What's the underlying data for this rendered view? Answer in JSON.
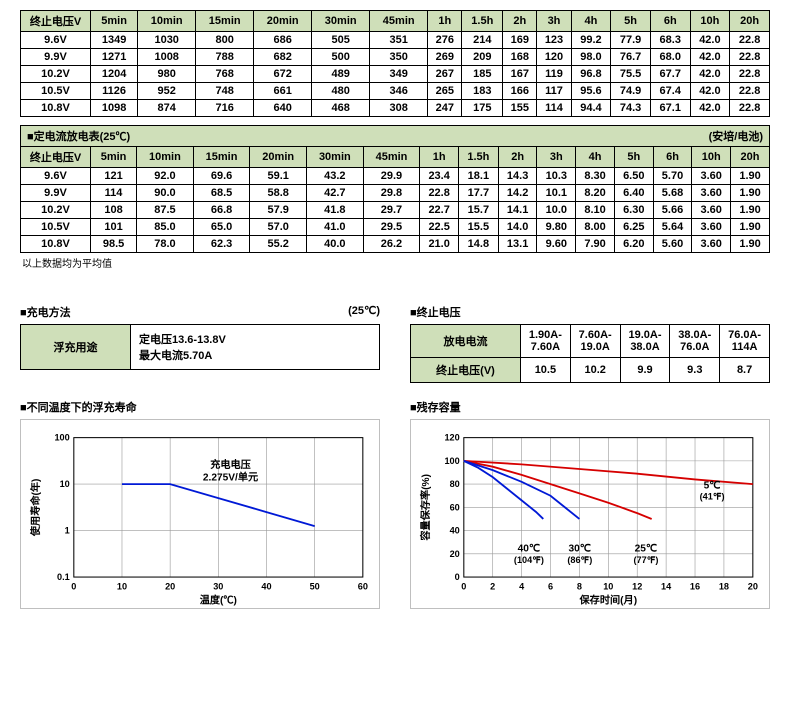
{
  "table1": {
    "headers": [
      "终止电压V",
      "5min",
      "10min",
      "15min",
      "20min",
      "30min",
      "45min",
      "1h",
      "1.5h",
      "2h",
      "3h",
      "4h",
      "5h",
      "6h",
      "10h",
      "20h"
    ],
    "rows": [
      [
        "9.6V",
        "1349",
        "1030",
        "800",
        "686",
        "505",
        "351",
        "276",
        "214",
        "169",
        "123",
        "99.2",
        "77.9",
        "68.3",
        "42.0",
        "22.8"
      ],
      [
        "9.9V",
        "1271",
        "1008",
        "788",
        "682",
        "500",
        "350",
        "269",
        "209",
        "168",
        "120",
        "98.0",
        "76.7",
        "68.0",
        "42.0",
        "22.8"
      ],
      [
        "10.2V",
        "1204",
        "980",
        "768",
        "672",
        "489",
        "349",
        "267",
        "185",
        "167",
        "119",
        "96.8",
        "75.5",
        "67.7",
        "42.0",
        "22.8"
      ],
      [
        "10.5V",
        "1126",
        "952",
        "748",
        "661",
        "480",
        "346",
        "265",
        "183",
        "166",
        "117",
        "95.6",
        "74.9",
        "67.4",
        "42.0",
        "22.8"
      ],
      [
        "10.8V",
        "1098",
        "874",
        "716",
        "640",
        "468",
        "308",
        "247",
        "175",
        "155",
        "114",
        "94.4",
        "74.3",
        "67.1",
        "42.0",
        "22.8"
      ]
    ]
  },
  "table2": {
    "title_left": "■定电流放电表(25℃)",
    "title_right": "(安培/电池)",
    "headers": [
      "终止电压V",
      "5min",
      "10min",
      "15min",
      "20min",
      "30min",
      "45min",
      "1h",
      "1.5h",
      "2h",
      "3h",
      "4h",
      "5h",
      "6h",
      "10h",
      "20h"
    ],
    "rows": [
      [
        "9.6V",
        "121",
        "92.0",
        "69.6",
        "59.1",
        "43.2",
        "29.9",
        "23.4",
        "18.1",
        "14.3",
        "10.3",
        "8.30",
        "6.50",
        "5.70",
        "3.60",
        "1.90"
      ],
      [
        "9.9V",
        "114",
        "90.0",
        "68.5",
        "58.8",
        "42.7",
        "29.8",
        "22.8",
        "17.7",
        "14.2",
        "10.1",
        "8.20",
        "6.40",
        "5.68",
        "3.60",
        "1.90"
      ],
      [
        "10.2V",
        "108",
        "87.5",
        "66.8",
        "57.9",
        "41.8",
        "29.7",
        "22.7",
        "15.7",
        "14.1",
        "10.0",
        "8.10",
        "6.30",
        "5.66",
        "3.60",
        "1.90"
      ],
      [
        "10.5V",
        "101",
        "85.0",
        "65.0",
        "57.0",
        "41.0",
        "29.5",
        "22.5",
        "15.5",
        "14.0",
        "9.80",
        "8.00",
        "6.25",
        "5.64",
        "3.60",
        "1.90"
      ],
      [
        "10.8V",
        "98.5",
        "78.0",
        "62.3",
        "55.2",
        "40.0",
        "26.2",
        "21.0",
        "14.8",
        "13.1",
        "9.60",
        "7.90",
        "6.20",
        "5.60",
        "3.60",
        "1.90"
      ]
    ],
    "note": "以上数据均为平均值"
  },
  "charging": {
    "heading": "■充电方法",
    "temp": "(25℃)",
    "float_label": "浮充用途",
    "voltage_label": "定电压13.6-13.8V",
    "max_current_label": "最大电流5.70A"
  },
  "end_voltage": {
    "heading": "■终止电压",
    "row1_label": "放电电流",
    "row2_label": "终止电压(V)",
    "ranges": [
      "1.90A-\n7.60A",
      "7.60A-\n19.0A",
      "19.0A-\n38.0A",
      "38.0A-\n76.0A",
      "76.0A-\n114A"
    ],
    "voltages": [
      "10.5",
      "10.2",
      "9.9",
      "9.3",
      "8.7"
    ]
  },
  "chart1": {
    "heading": "■不同温度下的浮充寿命",
    "y_label": "使用寿命(年)",
    "x_label": "温度(℃)",
    "legend_title": "充电电压",
    "legend_value": "2.275V/单元",
    "x_ticks": [
      "0",
      "10",
      "20",
      "30",
      "40",
      "50",
      "60"
    ],
    "y_ticks": [
      "0.1",
      "1",
      "10",
      "100"
    ],
    "line_color": "#0019d6",
    "grid_color": "#9a9a9a",
    "points": [
      [
        10,
        10
      ],
      [
        20,
        10
      ],
      [
        30,
        5
      ],
      [
        40,
        2.5
      ],
      [
        50,
        1.25
      ]
    ]
  },
  "chart2": {
    "heading": "■残存容量",
    "y_label": "容量保存率(%)",
    "x_label": "保存时间(月)",
    "x_ticks": [
      "0",
      "2",
      "4",
      "6",
      "8",
      "10",
      "12",
      "14",
      "16",
      "18",
      "20"
    ],
    "y_ticks": [
      "0",
      "20",
      "40",
      "60",
      "80",
      "100",
      "120"
    ],
    "grid_color": "#9a9a9a",
    "series": [
      {
        "color": "#d60000",
        "label": "5℃",
        "sub": "(41℉)",
        "points": [
          [
            0,
            100
          ],
          [
            4,
            97
          ],
          [
            8,
            93
          ],
          [
            12,
            89
          ],
          [
            16,
            84
          ],
          [
            20,
            80
          ]
        ]
      },
      {
        "color": "#d60000",
        "label": "25℃",
        "sub": "(77℉)",
        "points": [
          [
            0,
            100
          ],
          [
            2,
            95
          ],
          [
            4,
            88
          ],
          [
            6,
            80
          ],
          [
            8,
            72
          ],
          [
            10,
            64
          ],
          [
            12,
            55
          ],
          [
            13,
            50
          ]
        ]
      },
      {
        "color": "#0019d6",
        "label": "30℃",
        "sub": "(86℉)",
        "points": [
          [
            0,
            100
          ],
          [
            2,
            92
          ],
          [
            4,
            82
          ],
          [
            6,
            70
          ],
          [
            7,
            60
          ],
          [
            8,
            50
          ]
        ]
      },
      {
        "color": "#0019d6",
        "label": "40℃",
        "sub": "(104℉)",
        "points": [
          [
            0,
            100
          ],
          [
            1,
            94
          ],
          [
            2,
            86
          ],
          [
            3,
            76
          ],
          [
            4,
            66
          ],
          [
            5,
            56
          ],
          [
            5.5,
            50
          ]
        ]
      }
    ]
  }
}
